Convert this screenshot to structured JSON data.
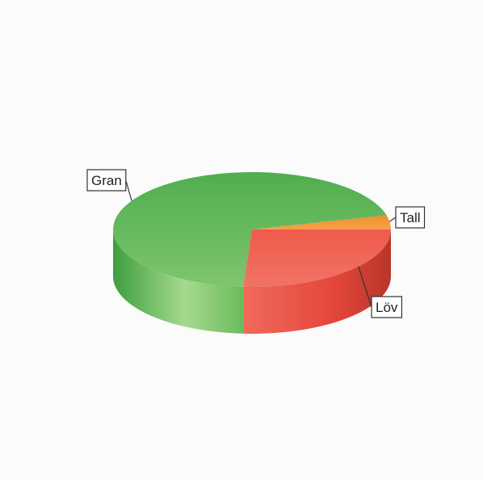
{
  "chart_data": {
    "type": "pie",
    "title": "",
    "three_d": true,
    "slices": [
      {
        "label": "Gran",
        "value": 70,
        "color": "#5cb85c"
      },
      {
        "label": "Tall",
        "value": 4,
        "color": "#f0922b"
      },
      {
        "label": "Löv",
        "value": 26,
        "color": "#e8574a"
      }
    ],
    "legend": "none",
    "data_labels": "outside-with-leader-lines"
  }
}
